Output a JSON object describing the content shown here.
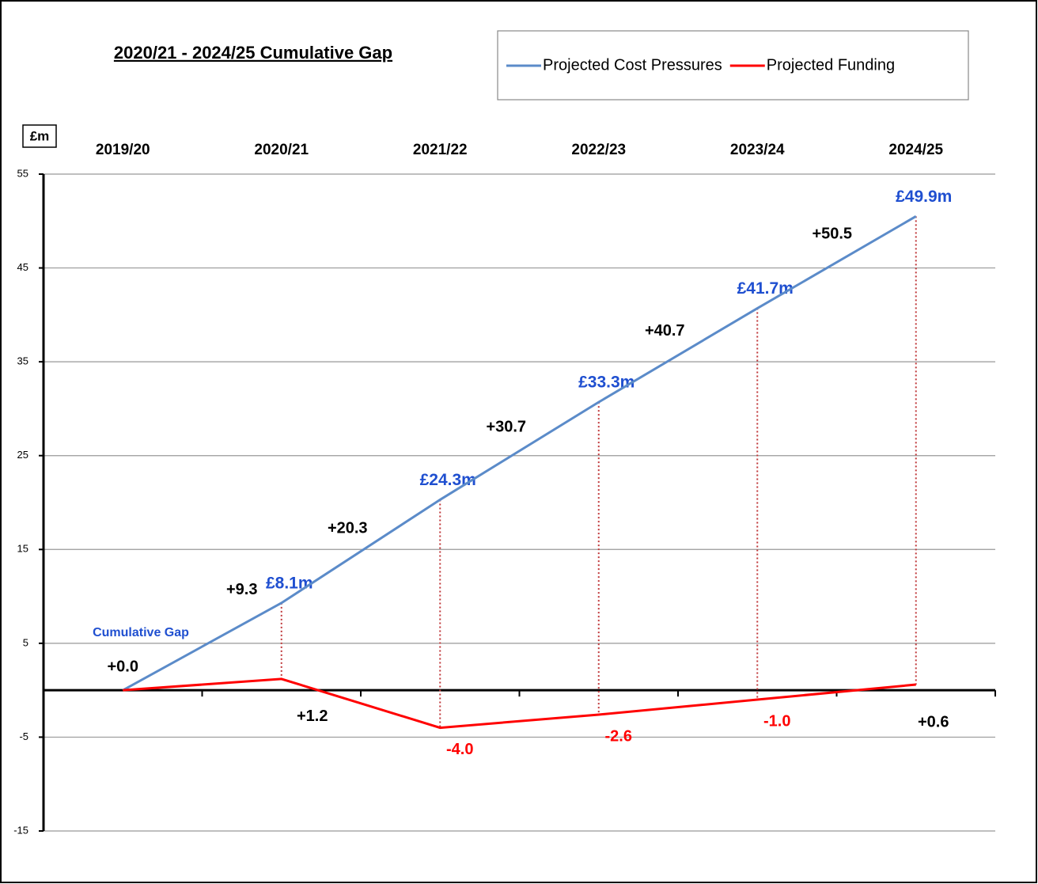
{
  "chart_data": {
    "type": "line",
    "title": "2020/21 - 2024/25 Cumulative Gap",
    "y_axis_label": "£m",
    "categories": [
      "2019/20",
      "2020/21",
      "2021/22",
      "2022/23",
      "2023/24",
      "2024/25"
    ],
    "series": [
      {
        "name": "Projected Cost Pressures",
        "color": "#5b8bc9",
        "label_color": "#000000",
        "values": [
          0,
          9.3,
          20.3,
          30.7,
          40.7,
          50.5
        ],
        "value_labels": [
          "+0.0",
          "+9.3",
          "+20.3",
          "+30.7",
          "+40.7",
          "+50.5"
        ]
      },
      {
        "name": "Projected Funding",
        "color": "#ff0000",
        "label_color": "#ff0000",
        "values": [
          0,
          1.2,
          -4.0,
          -2.6,
          -1.0,
          0.6
        ],
        "value_labels": [
          "+0.0",
          "+1.2",
          "-4.0",
          "-2.6",
          "-1.0",
          "+0.6"
        ]
      }
    ],
    "gap": {
      "name": "Cumulative Gap",
      "color": "#1f4fd0",
      "values": [
        null,
        8.1,
        24.3,
        33.3,
        41.7,
        49.9
      ],
      "value_labels": [
        null,
        "£8.1m",
        "£24.3m",
        "£33.3m",
        "£41.7m",
        "£49.9m"
      ]
    },
    "ylim": [
      -15,
      55
    ],
    "yticks": [
      -15,
      -5,
      5,
      15,
      25,
      35,
      45,
      55
    ],
    "grid": true,
    "legend": "top-right"
  }
}
